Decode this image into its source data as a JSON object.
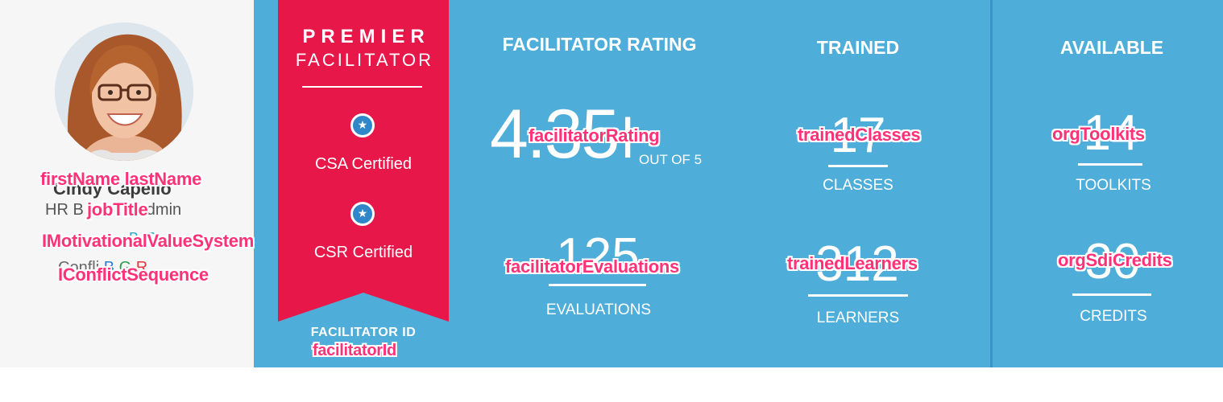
{
  "profile": {
    "name_ghost": "Cindy Capello",
    "job_title_ghost_left": "HR B",
    "job_title_ghost_right": "dmin",
    "motivational_ghost": "B G",
    "conflict_ghost_prefix": "Confli",
    "conflict_ghost_b": "B",
    "conflict_ghost_g": "G",
    "conflict_ghost_r": "R",
    "template": {
      "name": "firstName lastName",
      "job_title": "jobTitle",
      "motivational_value_system": "IMotivationalValueSystem",
      "conflict_sequence": "IConflictSequence"
    }
  },
  "badge": {
    "premier": "PREMIER",
    "facilitator": "FACILITATOR",
    "certifications": [
      {
        "label": "CSA Certified",
        "icon": "star-icon"
      },
      {
        "label": "CSR Certified",
        "icon": "star-icon"
      }
    ],
    "facilitator_id_label": "FACILITATOR ID",
    "facilitator_id_template": "facilitatorId"
  },
  "rating": {
    "heading": "FACILITATOR RATING",
    "value": "4.35",
    "value_tail": "l",
    "out_of": "OUT OF 5",
    "template": "facilitatorRating",
    "evaluations": {
      "value": "125",
      "label": "EVALUATIONS",
      "template": "facilitatorEvaluations"
    }
  },
  "trained": {
    "heading": "TRAINED",
    "classes": {
      "value": "17",
      "label": "CLASSES",
      "template": "trainedClasses"
    },
    "learners": {
      "value": "312",
      "label": "LEARNERS",
      "template": "trainedLearners"
    }
  },
  "available": {
    "heading": "AVAILABLE",
    "toolkits": {
      "value": "14",
      "label": "TOOLKITS",
      "template": "orgToolkits"
    },
    "credits": {
      "value": "30",
      "label": "CREDITS",
      "template": "orgSdiCredits"
    }
  },
  "colors": {
    "panel_blue": "#4eaed9",
    "ribbon_red": "#e8174a",
    "template_pink": "#ff3278",
    "profile_bg": "#f6f6f6"
  }
}
